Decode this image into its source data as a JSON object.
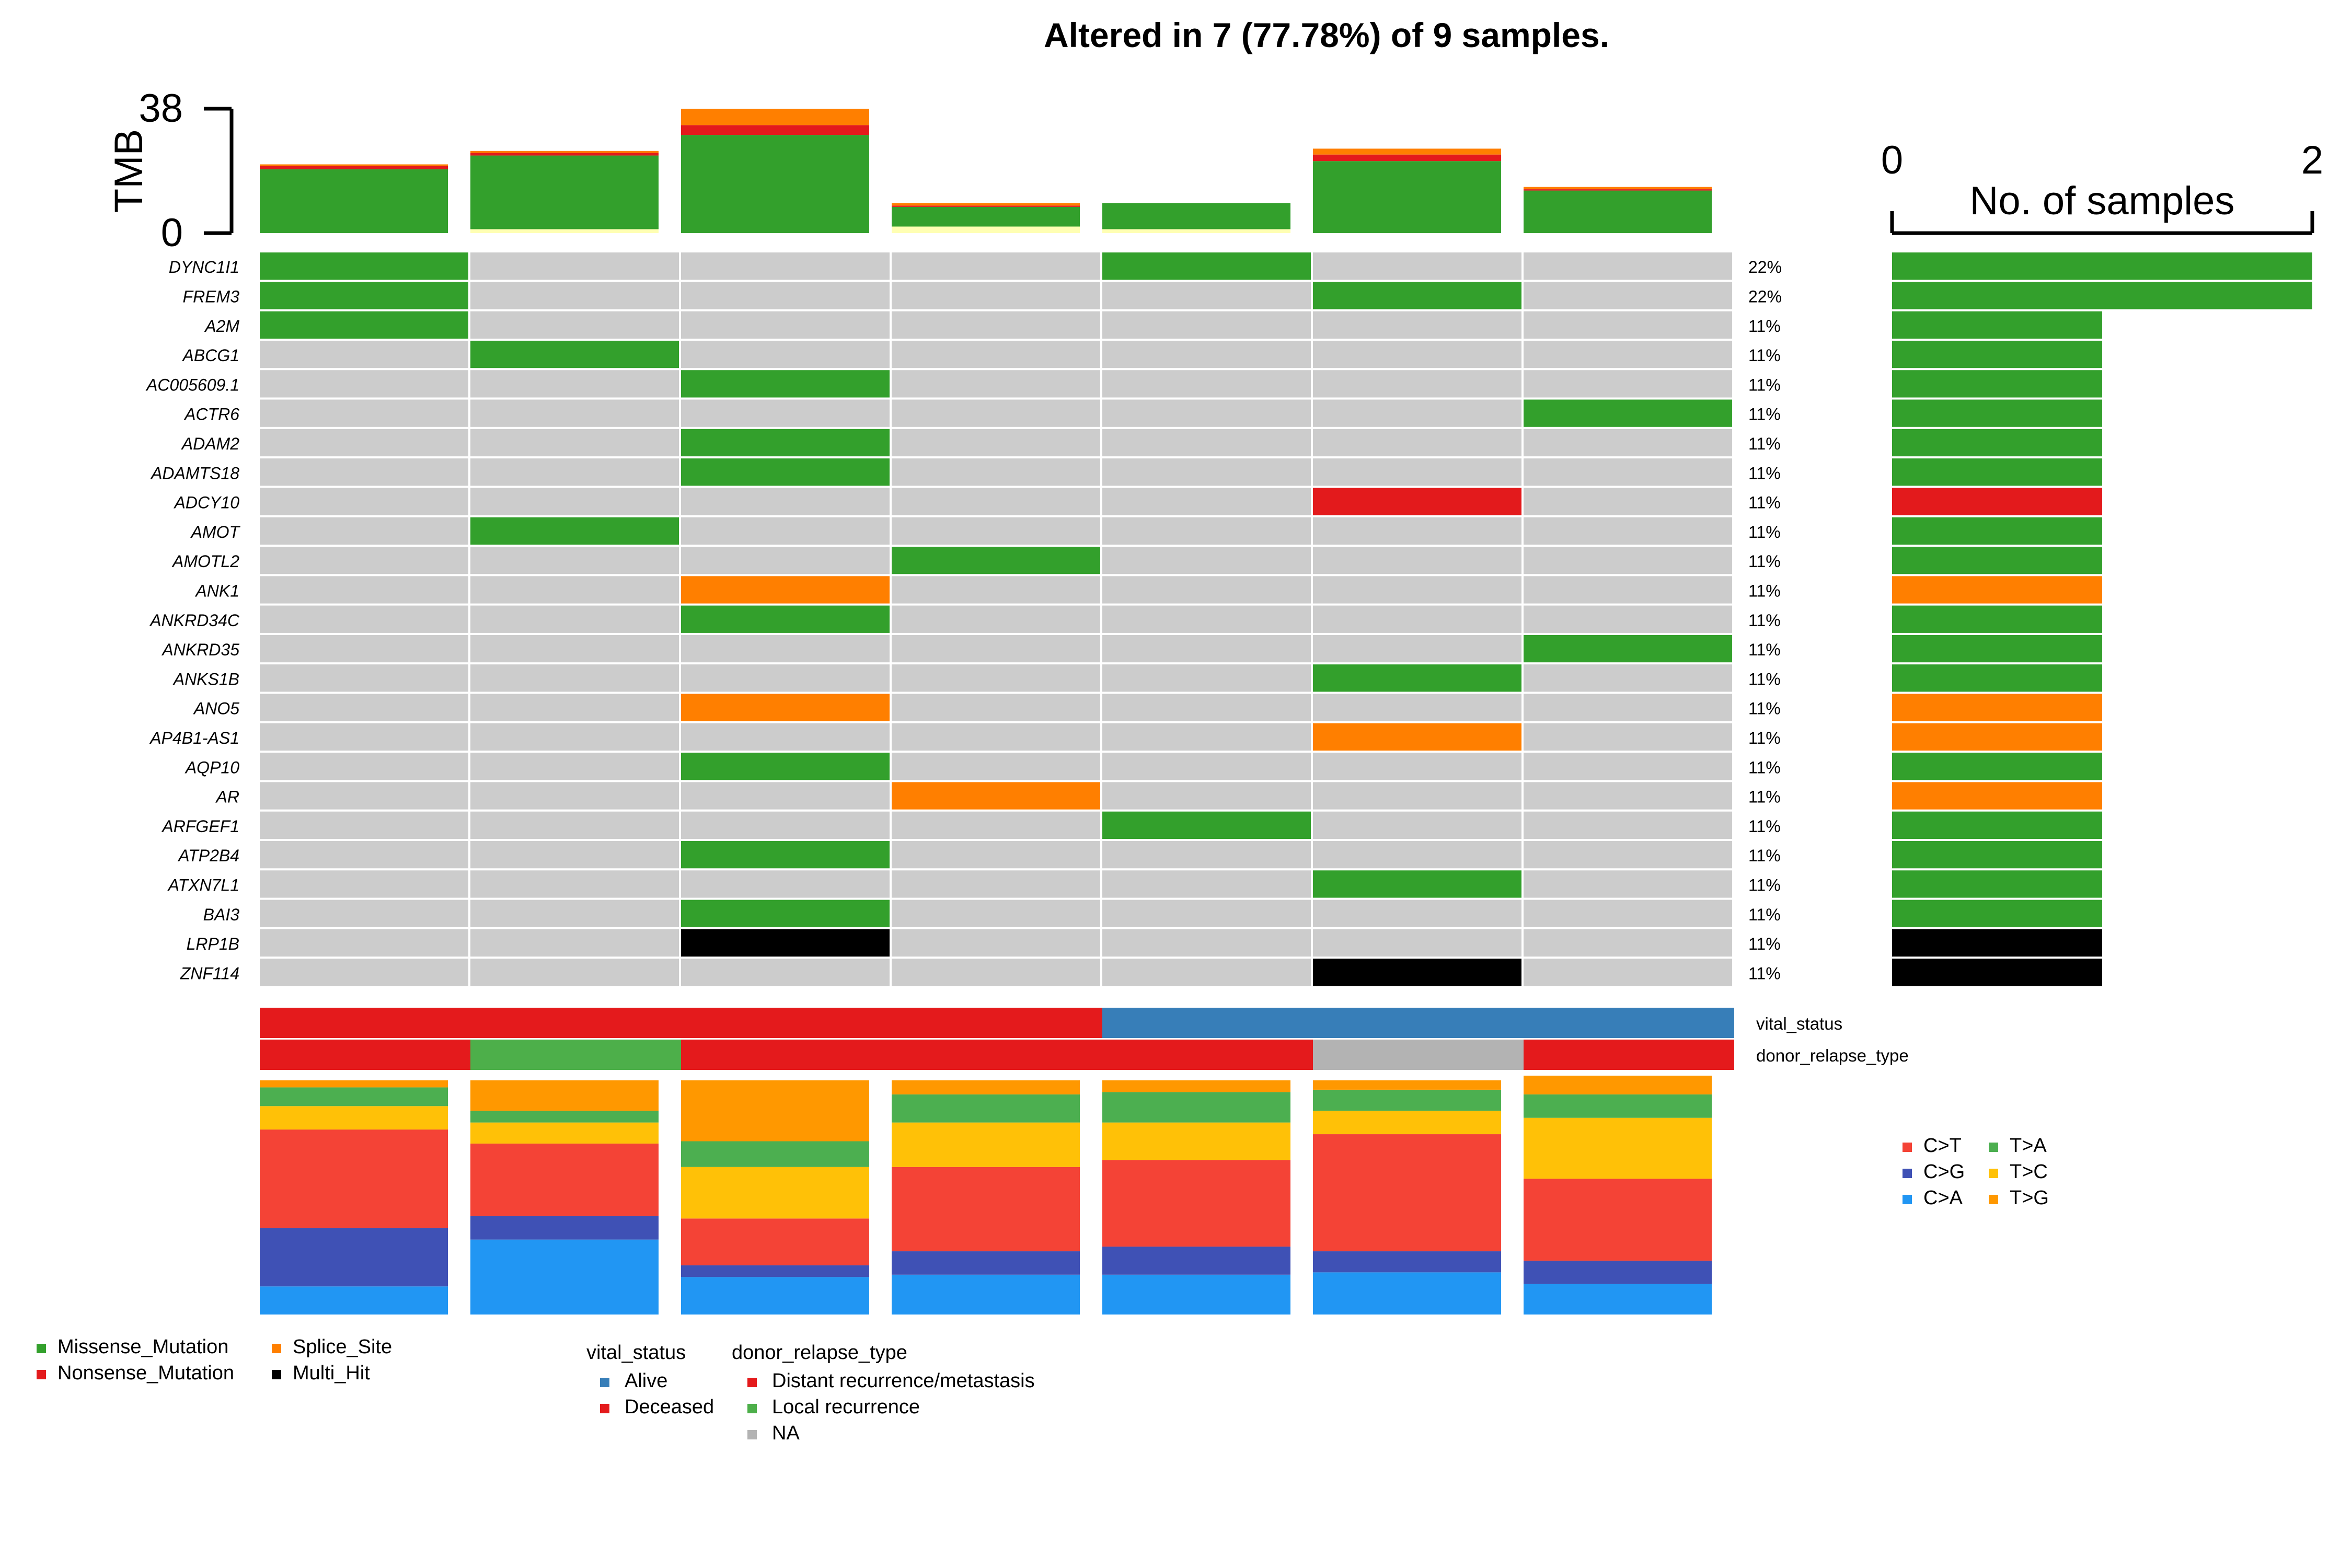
{
  "chart_data": {
    "type": "oncoplot",
    "title": "Altered in 7 (77.78%) of 9 samples.",
    "tmb": {
      "axis_label": "TMB",
      "ylim": [
        0,
        38
      ],
      "tick_labels": [
        "0",
        "38"
      ],
      "samples": [
        {
          "Missense_Mutation": 19.5,
          "Nonsense_Mutation": 1.0,
          "Splice_Site": 0.5,
          "Multi_Hit": 0,
          "other": 0
        },
        {
          "Missense_Mutation": 22.5,
          "Nonsense_Mutation": 0.8,
          "Splice_Site": 0.6,
          "Multi_Hit": 0,
          "other": 1.2
        },
        {
          "Missense_Mutation": 30.0,
          "Nonsense_Mutation": 3.0,
          "Splice_Site": 5.0,
          "Multi_Hit": 0,
          "other": 0
        },
        {
          "Missense_Mutation": 6.0,
          "Nonsense_Mutation": 0.4,
          "Splice_Site": 0.8,
          "Multi_Hit": 0,
          "other": 2.0
        },
        {
          "Missense_Mutation": 8.0,
          "Nonsense_Mutation": 0,
          "Splice_Site": 0,
          "Multi_Hit": 0,
          "other": 1.2
        },
        {
          "Missense_Mutation": 22.0,
          "Nonsense_Mutation": 2.0,
          "Splice_Site": 1.8,
          "Multi_Hit": 0,
          "other": 0
        },
        {
          "Missense_Mutation": 13.0,
          "Nonsense_Mutation": 0.4,
          "Splice_Site": 0.7,
          "Multi_Hit": 0,
          "other": 0
        }
      ]
    },
    "genes": [
      "DYNC1I1",
      "FREM3",
      "A2M",
      "ABCG1",
      "AC005609.1",
      "ACTR6",
      "ADAM2",
      "ADAMTS18",
      "ADCY10",
      "AMOT",
      "AMOTL2",
      "ANK1",
      "ANKRD34C",
      "ANKRD35",
      "ANKS1B",
      "ANO5",
      "AP4B1-AS1",
      "AQP10",
      "AR",
      "ARFGEF1",
      "ATP2B4",
      "ATXN7L1",
      "BAI3",
      "LRP1B",
      "ZNF114"
    ],
    "percentages": [
      "22%",
      "22%",
      "11%",
      "11%",
      "11%",
      "11%",
      "11%",
      "11%",
      "11%",
      "11%",
      "11%",
      "11%",
      "11%",
      "11%",
      "11%",
      "11%",
      "11%",
      "11%",
      "11%",
      "11%",
      "11%",
      "11%",
      "11%",
      "11%",
      "11%"
    ],
    "matrix": [
      [
        "Missense_Mutation",
        null,
        null,
        null,
        "Missense_Mutation",
        null,
        null
      ],
      [
        "Missense_Mutation",
        null,
        null,
        null,
        null,
        "Missense_Mutation",
        null
      ],
      [
        "Missense_Mutation",
        null,
        null,
        null,
        null,
        null,
        null
      ],
      [
        null,
        "Missense_Mutation",
        null,
        null,
        null,
        null,
        null
      ],
      [
        null,
        null,
        "Missense_Mutation",
        null,
        null,
        null,
        null
      ],
      [
        null,
        null,
        null,
        null,
        null,
        null,
        "Missense_Mutation"
      ],
      [
        null,
        null,
        "Missense_Mutation",
        null,
        null,
        null,
        null
      ],
      [
        null,
        null,
        "Missense_Mutation",
        null,
        null,
        null,
        null
      ],
      [
        null,
        null,
        null,
        null,
        null,
        "Nonsense_Mutation",
        null
      ],
      [
        null,
        "Missense_Mutation",
        null,
        null,
        null,
        null,
        null
      ],
      [
        null,
        null,
        null,
        "Missense_Mutation",
        null,
        null,
        null
      ],
      [
        null,
        null,
        "Splice_Site",
        null,
        null,
        null,
        null
      ],
      [
        null,
        null,
        "Missense_Mutation",
        null,
        null,
        null,
        null
      ],
      [
        null,
        null,
        null,
        null,
        null,
        null,
        "Missense_Mutation"
      ],
      [
        null,
        null,
        null,
        null,
        null,
        "Missense_Mutation",
        null
      ],
      [
        null,
        null,
        "Splice_Site",
        null,
        null,
        null,
        null
      ],
      [
        null,
        null,
        null,
        null,
        null,
        "Splice_Site",
        null
      ],
      [
        null,
        null,
        "Missense_Mutation",
        null,
        null,
        null,
        null
      ],
      [
        null,
        null,
        null,
        "Splice_Site",
        null,
        null,
        null
      ],
      [
        null,
        null,
        null,
        null,
        "Missense_Mutation",
        null,
        null
      ],
      [
        null,
        null,
        "Missense_Mutation",
        null,
        null,
        null,
        null
      ],
      [
        null,
        null,
        null,
        null,
        null,
        "Missense_Mutation",
        null
      ],
      [
        null,
        null,
        "Missense_Mutation",
        null,
        null,
        null,
        null
      ],
      [
        null,
        null,
        "Multi_Hit",
        null,
        null,
        null,
        null
      ],
      [
        null,
        null,
        null,
        null,
        null,
        "Multi_Hit",
        null
      ]
    ],
    "gene_bars": {
      "axis_label": "No. of samples",
      "xlim": [
        0,
        2
      ],
      "tick_labels": [
        "0",
        "2"
      ],
      "counts": [
        2,
        2,
        1,
        1,
        1,
        1,
        1,
        1,
        1,
        1,
        1,
        1,
        1,
        1,
        1,
        1,
        1,
        1,
        1,
        1,
        1,
        1,
        1,
        1,
        1
      ],
      "types": [
        "Missense_Mutation",
        "Missense_Mutation",
        "Missense_Mutation",
        "Missense_Mutation",
        "Missense_Mutation",
        "Missense_Mutation",
        "Missense_Mutation",
        "Missense_Mutation",
        "Nonsense_Mutation",
        "Missense_Mutation",
        "Missense_Mutation",
        "Splice_Site",
        "Missense_Mutation",
        "Missense_Mutation",
        "Missense_Mutation",
        "Splice_Site",
        "Splice_Site",
        "Missense_Mutation",
        "Splice_Site",
        "Missense_Mutation",
        "Missense_Mutation",
        "Missense_Mutation",
        "Missense_Mutation",
        "Multi_Hit",
        "Multi_Hit"
      ]
    },
    "annotations": {
      "tracks": [
        {
          "name": "vital_status",
          "values": [
            "Deceased",
            "Deceased",
            "Deceased",
            "Deceased",
            "Alive",
            "Alive",
            "Alive"
          ]
        },
        {
          "name": "donor_relapse_type",
          "values": [
            "Distant recurrence/metastasis",
            "Local recurrence",
            "Distant recurrence/metastasis",
            "Distant recurrence/metastasis",
            "Distant recurrence/metastasis",
            "NA",
            "Distant recurrence/metastasis"
          ]
        }
      ]
    },
    "titv": {
      "order": [
        "C>A",
        "C>G",
        "C>T",
        "T>C",
        "T>A",
        "T>G"
      ],
      "fractions": [
        {
          "C>A": 0.12,
          "C>G": 0.25,
          "C>T": 0.42,
          "T>C": 0.1,
          "T>A": 0.08,
          "T>G": 0.03
        },
        {
          "C>A": 0.32,
          "C>G": 0.1,
          "C>T": 0.31,
          "T>C": 0.09,
          "T>A": 0.05,
          "T>G": 0.13
        },
        {
          "C>A": 0.16,
          "C>G": 0.05,
          "C>T": 0.2,
          "T>C": 0.22,
          "T>A": 0.11,
          "T>G": 0.26
        },
        {
          "C>A": 0.17,
          "C>G": 0.1,
          "C>T": 0.36,
          "T>C": 0.19,
          "T>A": 0.12,
          "T>G": 0.06
        },
        {
          "C>A": 0.17,
          "C>G": 0.12,
          "C>T": 0.37,
          "T>C": 0.16,
          "T>A": 0.13,
          "T>G": 0.05
        },
        {
          "C>A": 0.18,
          "C>G": 0.09,
          "C>T": 0.5,
          "T>C": 0.1,
          "T>A": 0.09,
          "T>G": 0.04
        },
        {
          "C>A": 0.13,
          "C>G": 0.1,
          "C>T": 0.35,
          "T>C": 0.26,
          "T>A": 0.1,
          "T>G": 0.08
        }
      ]
    },
    "variant_legend": [
      {
        "label": "Missense_Mutation",
        "color": "#33A02C"
      },
      {
        "label": "Splice_Site",
        "color": "#FF7F00"
      },
      {
        "label": "Nonsense_Mutation",
        "color": "#E31A1C"
      },
      {
        "label": "Multi_Hit",
        "color": "#000000"
      }
    ],
    "annotation_legend": {
      "vital_status": {
        "title": "vital_status",
        "items": [
          {
            "label": "Alive",
            "color": "#377EB8"
          },
          {
            "label": "Deceased",
            "color": "#E41A1C"
          }
        ]
      },
      "donor_relapse_type": {
        "title": "donor_relapse_type",
        "items": [
          {
            "label": "Distant recurrence/metastasis",
            "color": "#E41A1C"
          },
          {
            "label": "Local recurrence",
            "color": "#4DAF4A"
          },
          {
            "label": "NA",
            "color": "#B3B3B3"
          }
        ]
      }
    },
    "titv_legend": [
      {
        "label": "C>T",
        "color": "#F44336"
      },
      {
        "label": "T>A",
        "color": "#4CAF50"
      },
      {
        "label": "C>G",
        "color": "#3F51B5"
      },
      {
        "label": "T>C",
        "color": "#FFC107"
      },
      {
        "label": "C>A",
        "color": "#2196F3"
      },
      {
        "label": "T>G",
        "color": "#FF9800"
      }
    ],
    "colors": {
      "Missense_Mutation": "#33A02C",
      "Nonsense_Mutation": "#E31A1C",
      "Splice_Site": "#FF7F00",
      "Multi_Hit": "#000000",
      "other": "#FFFFB3",
      "empty": "#CCCCCC",
      "annotation": {
        "vital_status": {
          "Alive": "#377EB8",
          "Deceased": "#E41A1C"
        },
        "donor_relapse_type": {
          "Distant recurrence/metastasis": "#E41A1C",
          "Local recurrence": "#4DAF4A",
          "NA": "#B3B3B3"
        }
      },
      "titv": {
        "C>A": "#2196F3",
        "C>G": "#3F51B5",
        "C>T": "#F44336",
        "T>C": "#FFC107",
        "T>A": "#4CAF50",
        "T>G": "#FF9800"
      }
    }
  }
}
